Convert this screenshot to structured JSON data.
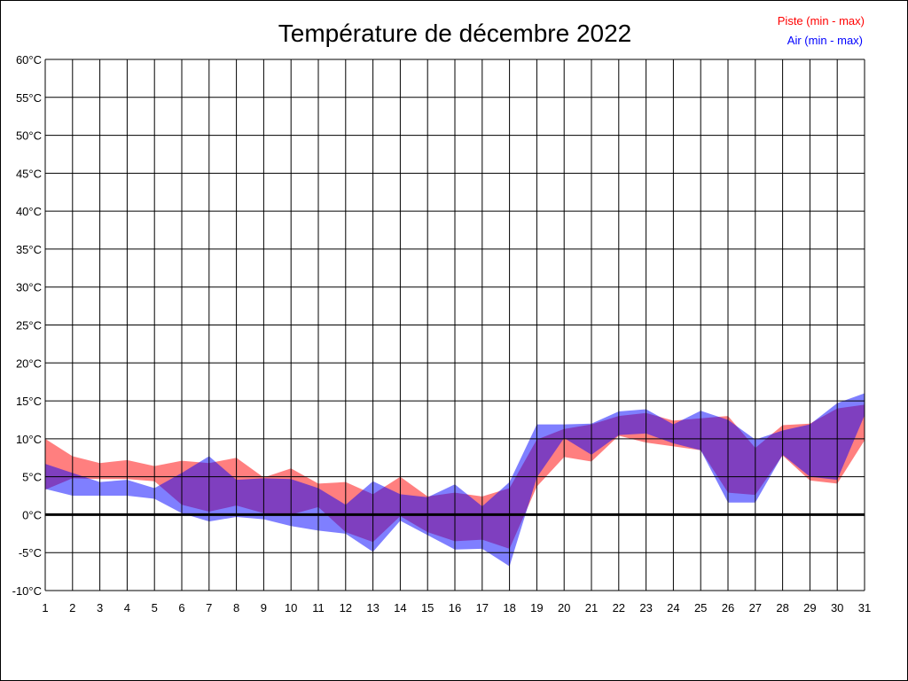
{
  "chart_data": {
    "type": "area",
    "title": "Température de décembre 2022",
    "xlabel": "",
    "ylabel": "",
    "x": [
      1,
      2,
      3,
      4,
      5,
      6,
      7,
      8,
      9,
      10,
      11,
      12,
      13,
      14,
      15,
      16,
      17,
      18,
      19,
      20,
      21,
      22,
      23,
      24,
      25,
      26,
      27,
      28,
      29,
      30,
      31
    ],
    "ylim": [
      -10,
      60
    ],
    "yticks": [
      -10,
      -5,
      0,
      5,
      10,
      15,
      20,
      25,
      30,
      35,
      40,
      45,
      50,
      55,
      60
    ],
    "ytick_suffix": "°C",
    "grid": true,
    "legend_position": "top-right",
    "series": [
      {
        "name": "Piste (min - max)",
        "color": "#ff0000",
        "max": [
          10.0,
          7.7,
          6.8,
          7.2,
          6.4,
          7.1,
          6.8,
          7.5,
          4.9,
          6.1,
          4.1,
          4.3,
          2.7,
          5.0,
          2.4,
          2.9,
          2.4,
          3.5,
          9.9,
          11.3,
          11.9,
          13.0,
          13.4,
          12.4,
          12.7,
          13.0,
          8.8,
          11.8,
          12.0,
          14.0,
          14.5
        ],
        "min": [
          3.3,
          4.8,
          4.7,
          4.7,
          4.4,
          1.3,
          0.4,
          1.2,
          0.2,
          0.0,
          1.0,
          -2.3,
          -3.6,
          -0.2,
          -2.3,
          -3.5,
          -3.3,
          -4.5,
          3.7,
          7.6,
          7.0,
          10.4,
          9.5,
          9.0,
          8.5,
          2.9,
          2.6,
          7.8,
          4.5,
          4.1,
          9.8
        ]
      },
      {
        "name": "Air (min - max)",
        "color": "#0000ff",
        "max": [
          6.7,
          5.5,
          4.3,
          4.6,
          3.5,
          5.5,
          7.7,
          4.6,
          4.8,
          4.7,
          3.5,
          1.3,
          4.4,
          2.7,
          2.3,
          4.0,
          1.1,
          4.3,
          11.9,
          11.9,
          12.0,
          13.6,
          13.9,
          11.9,
          13.7,
          12.5,
          9.9,
          11.1,
          11.9,
          14.7,
          16.0
        ],
        "min": [
          3.4,
          2.5,
          2.5,
          2.5,
          2.1,
          0.2,
          -0.9,
          -0.3,
          -0.6,
          -1.5,
          -2.1,
          -2.5,
          -4.9,
          -0.8,
          -2.7,
          -4.6,
          -4.5,
          -6.8,
          4.9,
          10.1,
          7.9,
          10.5,
          10.7,
          9.4,
          8.5,
          1.6,
          1.6,
          7.9,
          5.0,
          4.6,
          13.1
        ]
      }
    ]
  }
}
